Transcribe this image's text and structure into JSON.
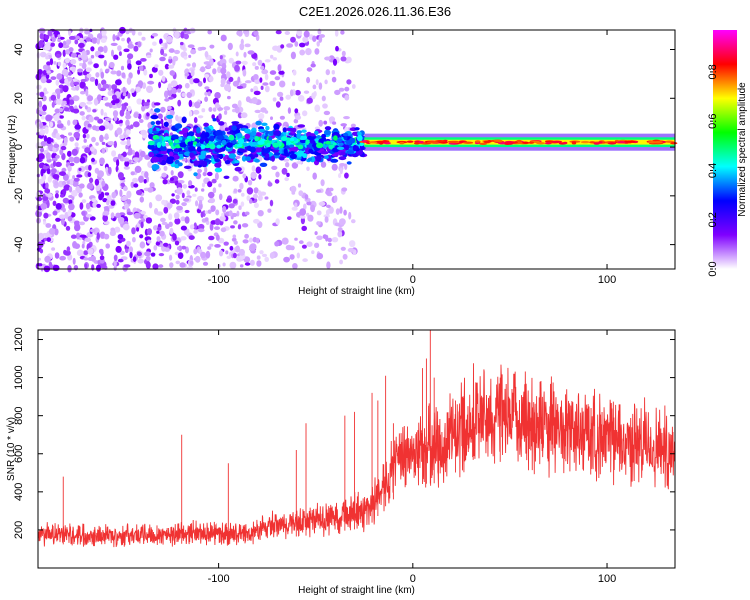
{
  "title": "C2E1.2026.026.11.36.E36",
  "chart_data": [
    {
      "type": "heatmap",
      "name": "spectrogram",
      "xlabel": "Height of straight line (km)",
      "ylabel": "Frequency (Hz)",
      "xlim": [
        -193,
        135
      ],
      "ylim": [
        -50,
        48
      ],
      "xticks": [
        -100,
        0,
        100
      ],
      "xtick_labels": [
        "-100",
        "0",
        "100"
      ],
      "yticks": [
        -40,
        -20,
        0,
        20,
        40
      ],
      "ytick_labels": [
        "-40",
        "-20",
        "0",
        "20",
        "40"
      ],
      "colorbar": {
        "label": "Normalized spectral amplitude",
        "range": [
          0,
          0.97
        ],
        "ticks": [
          0,
          0.2,
          0.4,
          0.6,
          0.8
        ],
        "tick_labels": [
          "0.0",
          "0.2",
          "0.4",
          "0.6",
          "0.8"
        ],
        "colors": [
          "#ffffff",
          "#7f00ff",
          "#0000ff",
          "#00ffff",
          "#00ff00",
          "#ffff00",
          "#ff0000",
          "#ff00ff"
        ]
      },
      "features": {
        "noise_region_x": [
          -193,
          -30
        ],
        "band_freq_hz": 2,
        "band_start_x": -135,
        "band_strong_start_x": -25
      }
    },
    {
      "type": "line",
      "name": "snr",
      "xlabel": "Height of straight line (km)",
      "ylabel": "SNR (10 * v/v)",
      "xlim": [
        -193,
        135
      ],
      "ylim": [
        0,
        1250
      ],
      "xticks": [
        -100,
        0,
        100
      ],
      "xtick_labels": [
        "-100",
        "0",
        "100"
      ],
      "yticks": [
        200,
        400,
        600,
        800,
        1000,
        1200
      ],
      "ytick_labels": [
        "200",
        "400",
        "600",
        "800",
        "1000",
        "1200"
      ],
      "color": "#f03232",
      "trend": {
        "x": [
          -193,
          -150,
          -110,
          -85,
          -75,
          -50,
          -35,
          -25,
          -20,
          -15,
          -5,
          5,
          15,
          25,
          40,
          55,
          75,
          100,
          135
        ],
        "y": [
          180,
          170,
          185,
          175,
          215,
          250,
          280,
          300,
          350,
          450,
          580,
          630,
          640,
          750,
          800,
          790,
          740,
          680,
          620
        ]
      },
      "spikes": {
        "x": [
          -180,
          -119,
          -95,
          -60,
          -55,
          -35,
          -30,
          -21,
          -18,
          -14,
          -10,
          5,
          7,
          9,
          11,
          22,
          45
        ],
        "y": [
          480,
          700,
          550,
          620,
          760,
          800,
          820,
          920,
          880,
          1010,
          760,
          1050,
          1100,
          1250,
          1000,
          880,
          1000
        ]
      }
    }
  ]
}
